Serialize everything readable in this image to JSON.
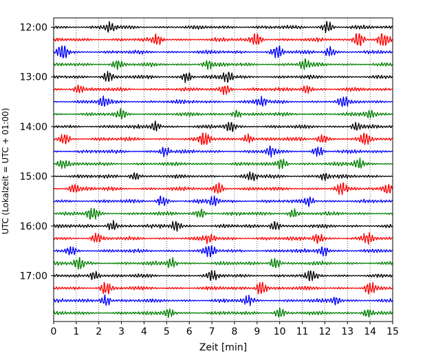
{
  "chart_data": {
    "type": "line",
    "subtype": "helicorder",
    "xlabel": "Zeit  [min]",
    "ylabel": "UTC (Lokalzeit = UTC + 01:00)",
    "xlim": [
      0,
      15
    ],
    "x_ticks": [
      0,
      1,
      2,
      3,
      4,
      5,
      6,
      7,
      8,
      9,
      10,
      11,
      12,
      13,
      14,
      15
    ],
    "x_grid": true,
    "x_grid_style": "dotted",
    "y_tick_labels": [
      "12:00",
      "13:00",
      "14:00",
      "15:00",
      "16:00",
      "17:00"
    ],
    "trace_interval_min": 15,
    "trace_start": "12:00",
    "trace_count": 24,
    "trace_color_cycle": [
      "#000000",
      "#ff0000",
      "#0000ff",
      "#008000"
    ],
    "traces": [
      {
        "start": "12:00",
        "color": "#000000",
        "bursts": [
          {
            "t": 2.5,
            "amp": 1.0
          },
          {
            "t": 12.1,
            "amp": 1.3
          }
        ]
      },
      {
        "start": "12:15",
        "color": "#ff0000",
        "bursts": [
          {
            "t": 4.6,
            "amp": 1.0
          },
          {
            "t": 9.0,
            "amp": 1.3
          },
          {
            "t": 13.5,
            "amp": 1.8
          },
          {
            "t": 14.6,
            "amp": 1.6
          }
        ]
      },
      {
        "start": "12:30",
        "color": "#0000ff",
        "bursts": [
          {
            "t": 0.4,
            "amp": 1.9
          },
          {
            "t": 9.9,
            "amp": 1.3
          },
          {
            "t": 12.2,
            "amp": 1.0
          }
        ]
      },
      {
        "start": "12:45",
        "color": "#008000",
        "bursts": [
          {
            "t": 2.8,
            "amp": 0.9
          },
          {
            "t": 6.8,
            "amp": 0.9
          },
          {
            "t": 11.1,
            "amp": 0.8
          }
        ]
      },
      {
        "start": "13:00",
        "color": "#000000",
        "bursts": [
          {
            "t": 2.4,
            "amp": 1.1
          },
          {
            "t": 5.9,
            "amp": 1.0
          },
          {
            "t": 7.7,
            "amp": 1.2
          }
        ]
      },
      {
        "start": "13:15",
        "color": "#ff0000",
        "bursts": [
          {
            "t": 1.1,
            "amp": 0.8
          },
          {
            "t": 7.6,
            "amp": 1.2
          },
          {
            "t": 11.2,
            "amp": 0.9
          }
        ]
      },
      {
        "start": "13:30",
        "color": "#0000ff",
        "bursts": [
          {
            "t": 2.2,
            "amp": 0.9
          },
          {
            "t": 9.2,
            "amp": 0.9
          },
          {
            "t": 12.8,
            "amp": 0.8
          }
        ]
      },
      {
        "start": "13:45",
        "color": "#008000",
        "bursts": [
          {
            "t": 3.0,
            "amp": 0.9
          },
          {
            "t": 8.1,
            "amp": 0.8
          },
          {
            "t": 14.0,
            "amp": 0.9
          }
        ]
      },
      {
        "start": "14:00",
        "color": "#000000",
        "bursts": [
          {
            "t": 4.5,
            "amp": 1.0
          },
          {
            "t": 7.8,
            "amp": 1.0
          },
          {
            "t": 13.4,
            "amp": 0.8
          }
        ]
      },
      {
        "start": "14:15",
        "color": "#ff0000",
        "bursts": [
          {
            "t": 0.5,
            "amp": 1.0
          },
          {
            "t": 6.7,
            "amp": 1.3
          },
          {
            "t": 8.6,
            "amp": 1.0
          },
          {
            "t": 11.9,
            "amp": 1.1
          },
          {
            "t": 13.8,
            "amp": 1.0
          }
        ]
      },
      {
        "start": "14:30",
        "color": "#0000ff",
        "bursts": [
          {
            "t": 4.9,
            "amp": 0.9
          },
          {
            "t": 9.6,
            "amp": 0.9
          },
          {
            "t": 11.7,
            "amp": 1.0
          }
        ]
      },
      {
        "start": "14:45",
        "color": "#008000",
        "bursts": [
          {
            "t": 0.4,
            "amp": 1.2
          },
          {
            "t": 10.1,
            "amp": 1.0
          },
          {
            "t": 13.5,
            "amp": 1.2
          }
        ]
      },
      {
        "start": "15:00",
        "color": "#000000",
        "bursts": [
          {
            "t": 3.6,
            "amp": 0.8
          },
          {
            "t": 8.8,
            "amp": 0.9
          },
          {
            "t": 12.0,
            "amp": 0.8
          }
        ]
      },
      {
        "start": "15:15",
        "color": "#ff0000",
        "bursts": [
          {
            "t": 0.9,
            "amp": 1.0
          },
          {
            "t": 7.3,
            "amp": 1.2
          },
          {
            "t": 12.7,
            "amp": 1.1
          },
          {
            "t": 14.8,
            "amp": 1.2
          }
        ]
      },
      {
        "start": "15:30",
        "color": "#0000ff",
        "bursts": [
          {
            "t": 4.8,
            "amp": 1.1
          },
          {
            "t": 7.1,
            "amp": 0.8
          },
          {
            "t": 11.3,
            "amp": 0.8
          }
        ]
      },
      {
        "start": "15:45",
        "color": "#008000",
        "bursts": [
          {
            "t": 1.7,
            "amp": 1.3
          },
          {
            "t": 6.5,
            "amp": 0.9
          },
          {
            "t": 10.6,
            "amp": 0.9
          }
        ]
      },
      {
        "start": "16:00",
        "color": "#000000",
        "bursts": [
          {
            "t": 2.6,
            "amp": 0.9
          },
          {
            "t": 5.4,
            "amp": 1.0
          },
          {
            "t": 9.8,
            "amp": 1.0
          }
        ]
      },
      {
        "start": "16:15",
        "color": "#ff0000",
        "bursts": [
          {
            "t": 1.9,
            "amp": 0.9
          },
          {
            "t": 6.9,
            "amp": 0.9
          },
          {
            "t": 11.7,
            "amp": 1.1
          },
          {
            "t": 13.9,
            "amp": 0.9
          }
        ]
      },
      {
        "start": "16:30",
        "color": "#0000ff",
        "bursts": [
          {
            "t": 0.8,
            "amp": 0.9
          },
          {
            "t": 6.9,
            "amp": 1.2
          },
          {
            "t": 11.9,
            "amp": 1.2
          }
        ]
      },
      {
        "start": "16:45",
        "color": "#008000",
        "bursts": [
          {
            "t": 1.1,
            "amp": 1.3
          },
          {
            "t": 5.2,
            "amp": 1.0
          },
          {
            "t": 9.8,
            "amp": 1.1
          }
        ]
      },
      {
        "start": "17:00",
        "color": "#000000",
        "bursts": [
          {
            "t": 1.8,
            "amp": 1.0
          },
          {
            "t": 7.0,
            "amp": 0.8
          },
          {
            "t": 11.4,
            "amp": 0.9
          }
        ]
      },
      {
        "start": "17:15",
        "color": "#ff0000",
        "bursts": [
          {
            "t": 2.3,
            "amp": 1.3
          },
          {
            "t": 9.2,
            "amp": 1.7
          },
          {
            "t": 14.0,
            "amp": 1.2
          }
        ]
      },
      {
        "start": "17:30",
        "color": "#0000ff",
        "bursts": [
          {
            "t": 2.3,
            "amp": 1.1
          },
          {
            "t": 8.6,
            "amp": 0.8
          },
          {
            "t": 12.5,
            "amp": 0.8
          }
        ]
      },
      {
        "start": "17:45",
        "color": "#008000",
        "bursts": [
          {
            "t": 5.1,
            "amp": 0.9
          },
          {
            "t": 10.0,
            "amp": 0.9
          },
          {
            "t": 13.9,
            "amp": 0.9
          }
        ]
      }
    ]
  }
}
